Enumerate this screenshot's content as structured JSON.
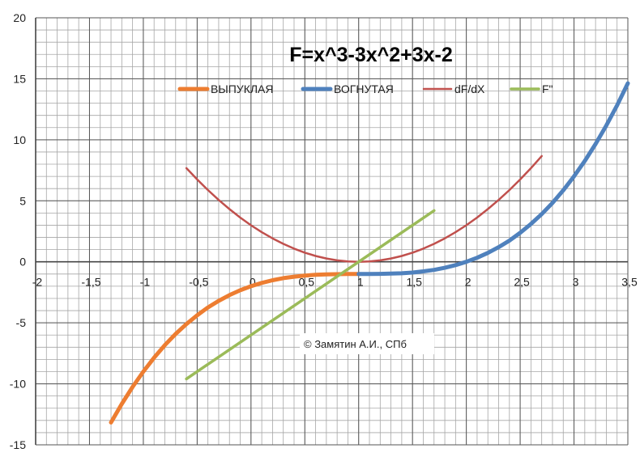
{
  "chart_data": {
    "type": "line",
    "title": "F=x^3-3x^2+3x-2",
    "xlabel": "",
    "ylabel": "",
    "xlim": [
      -2,
      3.5
    ],
    "ylim": [
      -15,
      20
    ],
    "x_ticks": [
      -2,
      -1.5,
      -1,
      -0.5,
      0,
      0.5,
      1,
      1.5,
      2,
      2.5,
      3,
      3.5
    ],
    "x_tick_labels": [
      "-2",
      "-1,5",
      "-1",
      "-0,5",
      "0",
      "0,5",
      "1",
      "1,5",
      "2",
      "2,5",
      "3",
      "3,5"
    ],
    "y_ticks": [
      -15,
      -10,
      -5,
      0,
      5,
      10,
      15,
      20
    ],
    "y_tick_labels": [
      "-15",
      "-10",
      "-5",
      "0",
      "5",
      "10",
      "15",
      "20"
    ],
    "grid": true,
    "legend_position": "top",
    "annotation": "© Замятин А.И., СПб",
    "series": [
      {
        "name": "ВЫПУКЛАЯ",
        "color": "#ED7D31",
        "x": [
          -1.3,
          -1.2,
          -1.1,
          -1.0,
          -0.9,
          -0.8,
          -0.7,
          -0.6,
          -0.5,
          -0.4,
          -0.3,
          -0.2,
          -0.1,
          0.0,
          0.1,
          0.2,
          0.3,
          0.4,
          0.5,
          0.6,
          0.7,
          0.8,
          0.9,
          1.0
        ],
        "y": [
          -13.17,
          -11.65,
          -10.26,
          -9.0,
          -7.86,
          -6.83,
          -5.91,
          -5.1,
          -4.38,
          -3.74,
          -3.2,
          -2.73,
          -2.33,
          -2.0,
          -1.73,
          -1.51,
          -1.34,
          -1.22,
          -1.13,
          -1.06,
          -1.03,
          -1.01,
          -1.0,
          -1.0
        ]
      },
      {
        "name": "ВОГНУТАЯ",
        "color": "#4F81BD",
        "x": [
          1.0,
          1.1,
          1.2,
          1.3,
          1.4,
          1.5,
          1.6,
          1.7,
          1.8,
          1.9,
          2.0,
          2.1,
          2.2,
          2.3,
          2.4,
          2.5,
          2.6,
          2.7,
          2.8,
          2.9,
          3.0,
          3.1,
          3.2,
          3.3,
          3.4,
          3.5
        ],
        "y": [
          -1.0,
          -1.0,
          -0.99,
          -0.97,
          -0.94,
          -0.88,
          -0.78,
          -0.66,
          -0.49,
          -0.27,
          0.0,
          0.33,
          0.73,
          1.2,
          1.74,
          2.38,
          3.1,
          3.91,
          4.83,
          5.86,
          7.0,
          8.26,
          9.65,
          11.17,
          12.82,
          14.63
        ]
      },
      {
        "name": "dF/dX",
        "color": "#C0504D",
        "x": [
          -0.6,
          -0.5,
          -0.4,
          -0.3,
          -0.2,
          -0.1,
          0.0,
          0.1,
          0.2,
          0.3,
          0.4,
          0.5,
          0.6,
          0.7,
          0.8,
          0.9,
          1.0,
          1.1,
          1.2,
          1.3,
          1.4,
          1.5,
          1.6,
          1.7,
          1.8,
          1.9,
          2.0,
          2.1,
          2.2,
          2.3,
          2.4,
          2.5,
          2.6,
          2.7
        ],
        "y": [
          7.68,
          6.75,
          5.88,
          5.07,
          4.32,
          3.63,
          3.0,
          2.43,
          1.92,
          1.47,
          1.08,
          0.75,
          0.48,
          0.27,
          0.12,
          0.03,
          0.0,
          0.03,
          0.12,
          0.27,
          0.48,
          0.75,
          1.08,
          1.47,
          1.92,
          2.43,
          3.0,
          3.63,
          4.32,
          5.07,
          5.88,
          6.75,
          7.68,
          8.67
        ]
      },
      {
        "name": "F\"",
        "color": "#9BBB59",
        "x": [
          -0.6,
          1.7
        ],
        "y": [
          -9.6,
          4.2
        ]
      }
    ]
  }
}
